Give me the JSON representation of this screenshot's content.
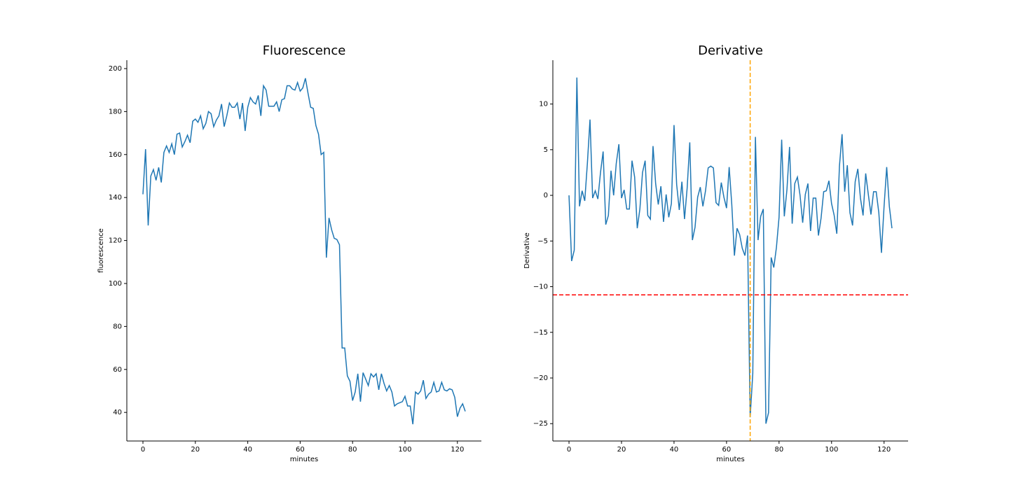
{
  "chart_data": [
    {
      "type": "line",
      "title": "Fluorescence",
      "x_label": "minutes",
      "y_label": "fluorescence",
      "x": [
        0,
        1,
        2,
        3,
        4,
        5,
        6,
        7,
        8,
        9,
        10,
        11,
        12,
        13,
        14,
        15,
        16,
        17,
        18,
        19,
        20,
        21,
        22,
        23,
        24,
        25,
        26,
        27,
        28,
        29,
        30,
        31,
        32,
        33,
        34,
        35,
        36,
        37,
        38,
        39,
        40,
        41,
        42,
        43,
        44,
        45,
        46,
        47,
        48,
        49,
        50,
        51,
        52,
        53,
        54,
        55,
        56,
        57,
        58,
        59,
        60,
        61,
        62,
        63,
        64,
        65,
        66,
        67,
        68,
        69,
        70,
        71,
        72,
        73,
        74,
        75,
        76,
        77,
        78,
        79,
        80,
        81,
        82,
        83,
        84,
        85,
        86,
        87,
        88,
        89,
        90,
        91,
        92,
        93,
        94,
        95,
        96,
        97,
        98,
        99,
        100,
        101,
        102,
        103,
        104,
        105,
        106,
        107,
        108,
        109,
        110,
        111,
        112,
        113,
        114,
        115,
        116,
        117,
        118,
        119,
        120,
        121,
        122,
        123
      ],
      "series": [
        {
          "color": "#1f77b4",
          "values": [
            141.5,
            162.5,
            127,
            150,
            153,
            148,
            154,
            147,
            161,
            164,
            161,
            165,
            160,
            169.5,
            170,
            163.5,
            166,
            169,
            165.5,
            175.5,
            176.5,
            175,
            178,
            172,
            174.5,
            180,
            179,
            173,
            176,
            178,
            183.5,
            173,
            178,
            184,
            182,
            182,
            184,
            176.5,
            184,
            171,
            182,
            186.5,
            184.5,
            183.5,
            187.5,
            178,
            192,
            190,
            182.5,
            182.5,
            182.5,
            184.5,
            180,
            185.5,
            186,
            192,
            192,
            190.5,
            190,
            193.5,
            189.5,
            191,
            195.5,
            188.5,
            182,
            181.5,
            173.5,
            169.5,
            160,
            161,
            112,
            130.5,
            125,
            121,
            120.5,
            118,
            70,
            70,
            57,
            54.5,
            45.5,
            49.5,
            58,
            45,
            58.5,
            55.5,
            52.5,
            58,
            56.5,
            58,
            50.5,
            58,
            53.5,
            50,
            52.5,
            49.5,
            43,
            44,
            44.5,
            45,
            47.5,
            43,
            43,
            34.5,
            49.5,
            48.5,
            50,
            55,
            46.5,
            48.5,
            49.5,
            54,
            49.5,
            50,
            54,
            50.5,
            50,
            51,
            50.5,
            47,
            38,
            42,
            44,
            40.5
          ]
        }
      ],
      "xlim": [
        -6.15,
        129.15
      ],
      "ylim": [
        26.7,
        203.9
      ],
      "xticks": [
        0,
        20,
        40,
        60,
        80,
        100,
        120
      ],
      "yticks": [
        40,
        60,
        80,
        100,
        120,
        140,
        160,
        180,
        200
      ],
      "hlines": [],
      "vlines": []
    },
    {
      "type": "line",
      "title": "Derivative",
      "x_label": "minutes",
      "y_label": "Derivative",
      "x": [
        0,
        1,
        2,
        3,
        4,
        5,
        6,
        7,
        8,
        9,
        10,
        11,
        12,
        13,
        14,
        15,
        16,
        17,
        18,
        19,
        20,
        21,
        22,
        23,
        24,
        25,
        26,
        27,
        28,
        29,
        30,
        31,
        32,
        33,
        34,
        35,
        36,
        37,
        38,
        39,
        40,
        41,
        42,
        43,
        44,
        45,
        46,
        47,
        48,
        49,
        50,
        51,
        52,
        53,
        54,
        55,
        56,
        57,
        58,
        59,
        60,
        61,
        62,
        63,
        64,
        65,
        66,
        67,
        68,
        69,
        70,
        71,
        72,
        73,
        74,
        75,
        76,
        77,
        78,
        79,
        80,
        81,
        82,
        83,
        84,
        85,
        86,
        87,
        88,
        89,
        90,
        91,
        92,
        93,
        94,
        95,
        96,
        97,
        98,
        99,
        100,
        101,
        102,
        103,
        104,
        105,
        106,
        107,
        108,
        109,
        110,
        111,
        112,
        113,
        114,
        115,
        116,
        117,
        118,
        119,
        120,
        121,
        122,
        123
      ],
      "series": [
        {
          "color": "#1f77b4",
          "values": [
            0,
            -7.2,
            -6,
            12.9,
            -1.2,
            0.5,
            -0.6,
            3.5,
            8.3,
            -0.3,
            0.5,
            -0.4,
            2.5,
            4.8,
            -3.2,
            -2.2,
            2.7,
            0,
            3.5,
            5.6,
            -0.3,
            0.6,
            -1.5,
            -1.5,
            3.8,
            2,
            -3.6,
            -1.5,
            2.5,
            3.8,
            -2.2,
            -2.6,
            5.4,
            1.3,
            -1,
            1,
            -2.9,
            0.1,
            -2.4,
            -0.9,
            7.7,
            1.2,
            -1.6,
            1.5,
            -2.6,
            0.8,
            5.8,
            -4.9,
            -3.5,
            -0.2,
            0.9,
            -1.2,
            0.5,
            3,
            3.2,
            3,
            -0.8,
            -1.1,
            1.4,
            -0.2,
            -1.4,
            3.1,
            -1,
            -6.6,
            -3.6,
            -4.3,
            -5.8,
            -6.6,
            -4.4,
            -24.3,
            -19.5,
            6.4,
            -4.9,
            -2.3,
            -1.5,
            -25,
            -23.8,
            -6.8,
            -7.9,
            -5.7,
            -2.4,
            6.1,
            -2.3,
            0.6,
            5.3,
            -3.1,
            1.3,
            2,
            0,
            -3,
            0.1,
            1.3,
            -3.9,
            -0.3,
            -0.3,
            -4.4,
            -2.5,
            0.4,
            0.5,
            1.6,
            -0.9,
            -2.2,
            -4.2,
            3.2,
            6.7,
            0.4,
            3.3,
            -1.9,
            -3.3,
            1.5,
            2.9,
            -0.3,
            -2.2,
            2.4,
            0.1,
            -2.1,
            0.4,
            0.4,
            -1.9,
            -6.3,
            -1.2,
            3.1,
            -1.2,
            -3.6
          ]
        }
      ],
      "xlim": [
        -6.15,
        129.15
      ],
      "ylim": [
        -26.9,
        14.8
      ],
      "xticks": [
        0,
        20,
        40,
        60,
        80,
        100,
        120
      ],
      "yticks": [
        {
          "value": -25,
          "label": "−25"
        },
        {
          "value": -20,
          "label": "−20"
        },
        {
          "value": -15,
          "label": "−15"
        },
        {
          "value": -10,
          "label": "−10"
        },
        {
          "value": -5,
          "label": "−5"
        },
        0,
        5,
        10
      ],
      "hlines": [
        {
          "value": -10.9,
          "color": "red"
        }
      ],
      "vlines": [
        {
          "value": 69,
          "color": "orange"
        }
      ]
    }
  ]
}
